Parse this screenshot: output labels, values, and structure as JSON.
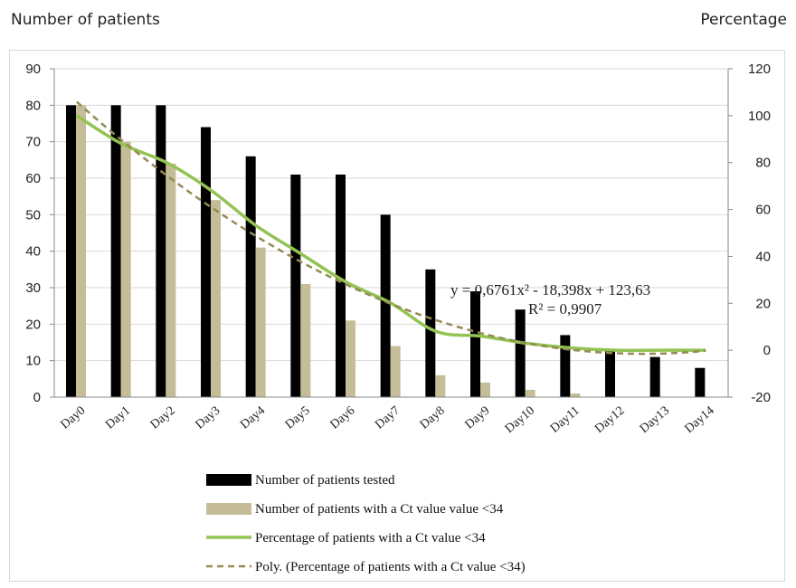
{
  "header": {
    "left_title": "Number of patients",
    "right_title": "Percentage"
  },
  "chart_data": {
    "type": "bar",
    "categories": [
      "Day0",
      "Day1",
      "Day2",
      "Day3",
      "Day4",
      "Day5",
      "Day6",
      "Day7",
      "Day8",
      "Day9",
      "Day10",
      "Day11",
      "Day12",
      "Day13",
      "Day14"
    ],
    "series": [
      {
        "name": "Number of patients tested",
        "kind": "bar",
        "axis": "left",
        "color": "#000000",
        "values": [
          80,
          80,
          80,
          74,
          66,
          61,
          61,
          50,
          35,
          29,
          24,
          17,
          13,
          11,
          8
        ]
      },
      {
        "name": "Number of patients with a Ct value value <34",
        "kind": "bar",
        "axis": "left",
        "color": "#c4bd97",
        "values": [
          80,
          70,
          64,
          54,
          41,
          31,
          21,
          14,
          6,
          4,
          2,
          1,
          0,
          0,
          0
        ]
      },
      {
        "name": "Percentage of patients with a Ct value <34",
        "kind": "line",
        "axis": "right",
        "color": "#92c353",
        "values": [
          100,
          88,
          80,
          68,
          53,
          41,
          29,
          20,
          8,
          6,
          3,
          1,
          0,
          0,
          0
        ]
      },
      {
        "name": "Poly. (Percentage of patients with a Ct value <34)",
        "kind": "trendline",
        "axis": "right",
        "color": "#948a54",
        "coefficients": [
          0.6761,
          -18.398,
          123.63
        ]
      }
    ],
    "left_axis": {
      "min": 0,
      "max": 90,
      "step": 10,
      "ticks": [
        "0",
        "10",
        "20",
        "30",
        "40",
        "50",
        "60",
        "70",
        "80",
        "90"
      ]
    },
    "right_axis": {
      "min": -20,
      "max": 120,
      "step": 20,
      "ticks": [
        "-20",
        "0",
        "20",
        "40",
        "60",
        "80",
        "100",
        "120"
      ]
    },
    "annotation": {
      "equation": "y = 0,6761x² - 18,398x + 123,63",
      "r2": "R² = 0,9907"
    },
    "legend_position": "bottom",
    "grid": true
  }
}
